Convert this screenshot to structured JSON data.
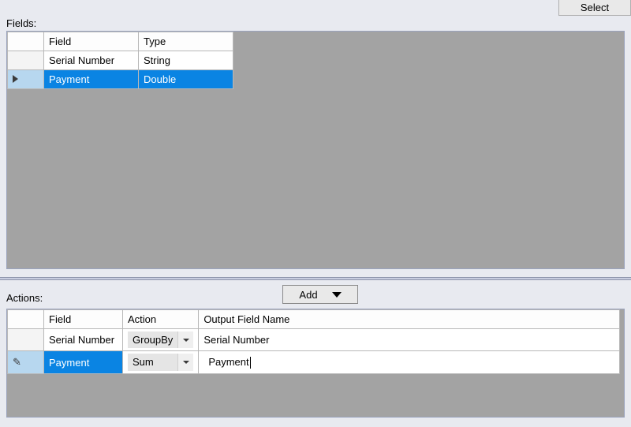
{
  "buttons": {
    "select": "Select",
    "add": "Add"
  },
  "labels": {
    "fields": "Fields:",
    "actions": "Actions:"
  },
  "fieldsGrid": {
    "columns": {
      "field": "Field",
      "type": "Type"
    },
    "widths": {
      "rowhdr": 46,
      "field": 120,
      "type": 120
    },
    "rows": [
      {
        "field": "Serial Number",
        "type": "String",
        "selected": false,
        "marker": ""
      },
      {
        "field": "Payment",
        "type": "Double",
        "selected": true,
        "marker": "triangle"
      }
    ]
  },
  "actionsGrid": {
    "columns": {
      "field": "Field",
      "action": "Action",
      "output": "Output Field Name"
    },
    "widths": {
      "rowhdr": 46,
      "field": 100,
      "action": 94,
      "output": 534
    },
    "rows": [
      {
        "field": "Serial Number",
        "action": "GroupBy",
        "output": "Serial Number",
        "selected": false,
        "marker": "",
        "editing": false
      },
      {
        "field": "Payment",
        "action": "Sum",
        "output": "Payment",
        "selected": true,
        "marker": "pencil",
        "editing": true
      }
    ]
  },
  "colors": {
    "selection": "#0a84e3",
    "rowHeaderSelected": "#b7d7ef",
    "panelBg": "#a3a3a3",
    "appBg": "#e8eaf0"
  }
}
